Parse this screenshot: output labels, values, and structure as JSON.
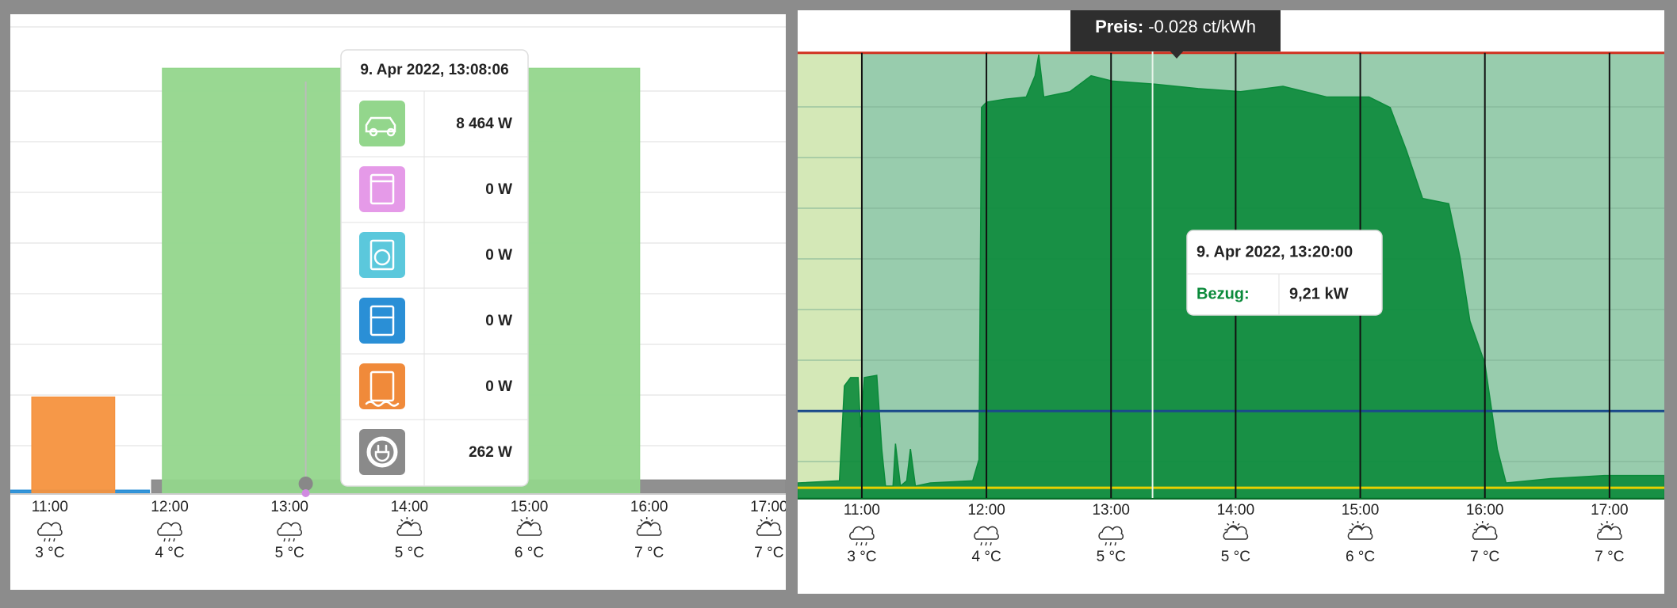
{
  "chart_data": [
    {
      "type": "area",
      "xlim": [
        10.67,
        17.14
      ],
      "ylim": [
        0,
        9400
      ],
      "grid": true,
      "xticks": [
        {
          "value": 11,
          "label": "11:00"
        },
        {
          "value": 12,
          "label": "12:00"
        },
        {
          "value": 13,
          "label": "13:00"
        },
        {
          "value": 14,
          "label": "14:00"
        },
        {
          "value": 15,
          "label": "15:00"
        },
        {
          "value": 16,
          "label": "16:00"
        },
        {
          "value": 17,
          "label": "17:00"
        }
      ],
      "weather": [
        {
          "icon": "rain",
          "temp": "3 °C"
        },
        {
          "icon": "rain",
          "temp": "4 °C"
        },
        {
          "icon": "rain",
          "temp": "5 °C"
        },
        {
          "icon": "sun-cloud",
          "temp": "5 °C"
        },
        {
          "icon": "sun-cloud",
          "temp": "6 °C"
        },
        {
          "icon": "sun-cloud",
          "temp": "7 °C"
        },
        {
          "icon": "sun-cloud",
          "temp": "7 °C"
        }
      ],
      "series": [
        {
          "color": "#2a8fd6",
          "x": [
            10.67,
            11.83
          ],
          "values": [
            60,
            60
          ]
        },
        {
          "color": "#8a8a8a",
          "x": [
            11.85,
            17.14
          ],
          "values": [
            262,
            262
          ]
        },
        {
          "color": "#f5923e",
          "x": [
            10.85,
            11.54
          ],
          "values": [
            1914,
            1914
          ]
        },
        {
          "color": "#93d68c",
          "x": [
            11.94,
            15.92
          ],
          "values": [
            8464,
            8464
          ]
        }
      ],
      "cursor": 13.135,
      "tooltip": {
        "title": "9. Apr 2022, 13:08:06",
        "rows": [
          {
            "icon": "car",
            "color": "#93d68c",
            "value": "8 464 W"
          },
          {
            "icon": "oven",
            "color": "#e59ae8",
            "value": "0 W"
          },
          {
            "icon": "washer",
            "color": "#5bc8dc",
            "value": "0 W"
          },
          {
            "icon": "fridge",
            "color": "#2a8fd6",
            "value": "0 W"
          },
          {
            "icon": "heater",
            "color": "#f08a3a",
            "value": "0 W"
          },
          {
            "icon": "plug",
            "color": "#8a8a8a",
            "value": "262 W"
          }
        ]
      }
    },
    {
      "type": "area",
      "xlim": [
        10.485,
        17.44
      ],
      "ylim": [
        0,
        11
      ],
      "xticks": [
        {
          "value": 11,
          "label": "11:00"
        },
        {
          "value": 12,
          "label": "12:00"
        },
        {
          "value": 13,
          "label": "13:00"
        },
        {
          "value": 14,
          "label": "14:00"
        },
        {
          "value": 15,
          "label": "15:00"
        },
        {
          "value": 16,
          "label": "16:00"
        },
        {
          "value": 17,
          "label": "17:00"
        }
      ],
      "weather": [
        {
          "icon": "rain",
          "temp": "3 °C"
        },
        {
          "icon": "rain",
          "temp": "4 °C"
        },
        {
          "icon": "rain",
          "temp": "5 °C"
        },
        {
          "icon": "sun-cloud",
          "temp": "5 °C"
        },
        {
          "icon": "sun-cloud",
          "temp": "6 °C"
        },
        {
          "icon": "sun-cloud",
          "temp": "7 °C"
        },
        {
          "icon": "sun-cloud",
          "temp": "7 °C"
        }
      ],
      "bands": [
        {
          "from": 10.485,
          "to": 11,
          "color": "#d4e8b7"
        },
        {
          "from": 11,
          "to": 17.44,
          "color": "#98ccad"
        }
      ],
      "reference_lines": [
        {
          "value": 10.09,
          "color": "#d0301f"
        },
        {
          "value": 1.97,
          "color": "#1a4a8a"
        },
        {
          "value": 0.23,
          "color": "#e8d000"
        }
      ],
      "series": [
        {
          "color": "#0a8a3a",
          "x": [
            10.485,
            10.82,
            10.86,
            10.91,
            10.97,
            10.99,
            11.02,
            11.12,
            11.16,
            11.19,
            11.25,
            11.27,
            11.31,
            11.36,
            11.39,
            11.43,
            11.55,
            11.89,
            11.94,
            11.96,
            12.0,
            12.15,
            12.32,
            12.39,
            12.42,
            12.46,
            12.67,
            12.84,
            13.01,
            13.35,
            13.7,
            14.04,
            14.38,
            14.73,
            15.07,
            15.24,
            15.37,
            15.5,
            15.71,
            15.8,
            15.88,
            16.0,
            16.05,
            16.1,
            16.17,
            16.53,
            16.96,
            17.44
          ],
          "values": [
            0.34,
            0.39,
            2.54,
            2.73,
            2.73,
            1.6,
            2.73,
            2.78,
            1.11,
            0.27,
            0.27,
            1.23,
            0.27,
            0.39,
            1.11,
            0.27,
            0.34,
            0.39,
            0.87,
            8.85,
            8.97,
            9.04,
            9.09,
            9.57,
            10.05,
            9.09,
            9.21,
            9.57,
            9.45,
            9.38,
            9.28,
            9.21,
            9.33,
            9.09,
            9.09,
            8.85,
            7.88,
            6.79,
            6.67,
            5.46,
            4.01,
            3.05,
            2.08,
            1.11,
            0.34,
            0.44,
            0.51,
            0.51
          ]
        }
      ],
      "cursor": 13.333,
      "price": {
        "label": "Preis:",
        "value": "-0.028 ct/kWh"
      },
      "tooltip": {
        "title": "9. Apr 2022, 13:20:00",
        "label": "Bezug:",
        "value": "9,21 kW"
      }
    }
  ]
}
